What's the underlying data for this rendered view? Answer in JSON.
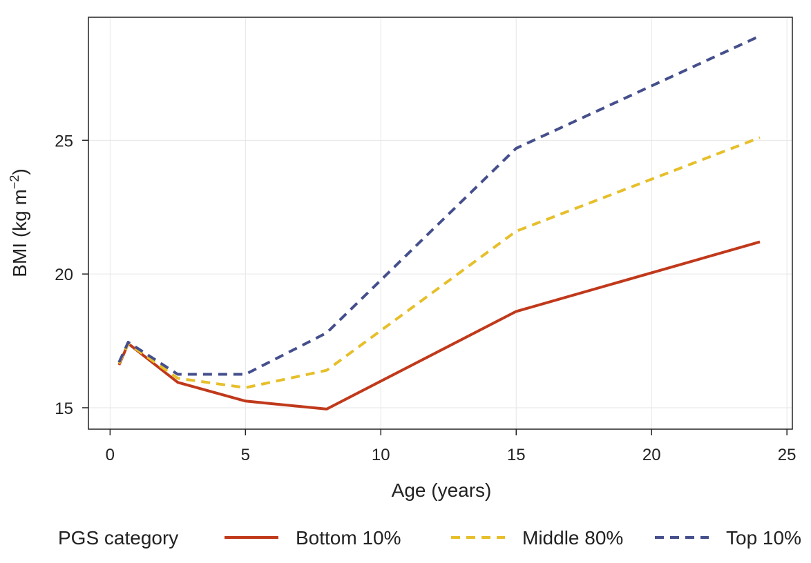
{
  "chart_data": {
    "type": "line",
    "title": "",
    "xlabel": "Age (years)",
    "ylabel": "BMI (kg m",
    "ylabel_superscript": "−2",
    "ylabel_close": ")",
    "xlim": [
      -0.8,
      25.2
    ],
    "ylim": [
      14.2,
      29.6
    ],
    "xticks": [
      0,
      5,
      10,
      15,
      20,
      25
    ],
    "xtick_labels": [
      "0",
      "5",
      "10",
      "15",
      "20",
      "25"
    ],
    "yticks": [
      15,
      20,
      25
    ],
    "ytick_labels": [
      "15",
      "20",
      "25"
    ],
    "grid": true,
    "legend": {
      "placement": "bottom",
      "title": "PGS category"
    },
    "x": [
      0.33,
      0.67,
      2.5,
      5,
      8,
      15,
      24
    ],
    "series": [
      {
        "name": "Bottom 10%",
        "values": [
          16.6,
          17.4,
          15.95,
          15.25,
          14.95,
          18.6,
          21.2
        ],
        "color": "#c0391b",
        "line_style": "solid"
      },
      {
        "name": "Middle 80%",
        "values": [
          16.65,
          17.4,
          16.1,
          15.75,
          16.4,
          21.6,
          25.1
        ],
        "color": "#e6bf2a",
        "line_style": "dashed"
      },
      {
        "name": "Top 10%",
        "values": [
          16.7,
          17.45,
          16.25,
          16.25,
          17.8,
          24.7,
          28.9
        ],
        "color": "#454f8c",
        "line_style": "dashed"
      }
    ]
  }
}
